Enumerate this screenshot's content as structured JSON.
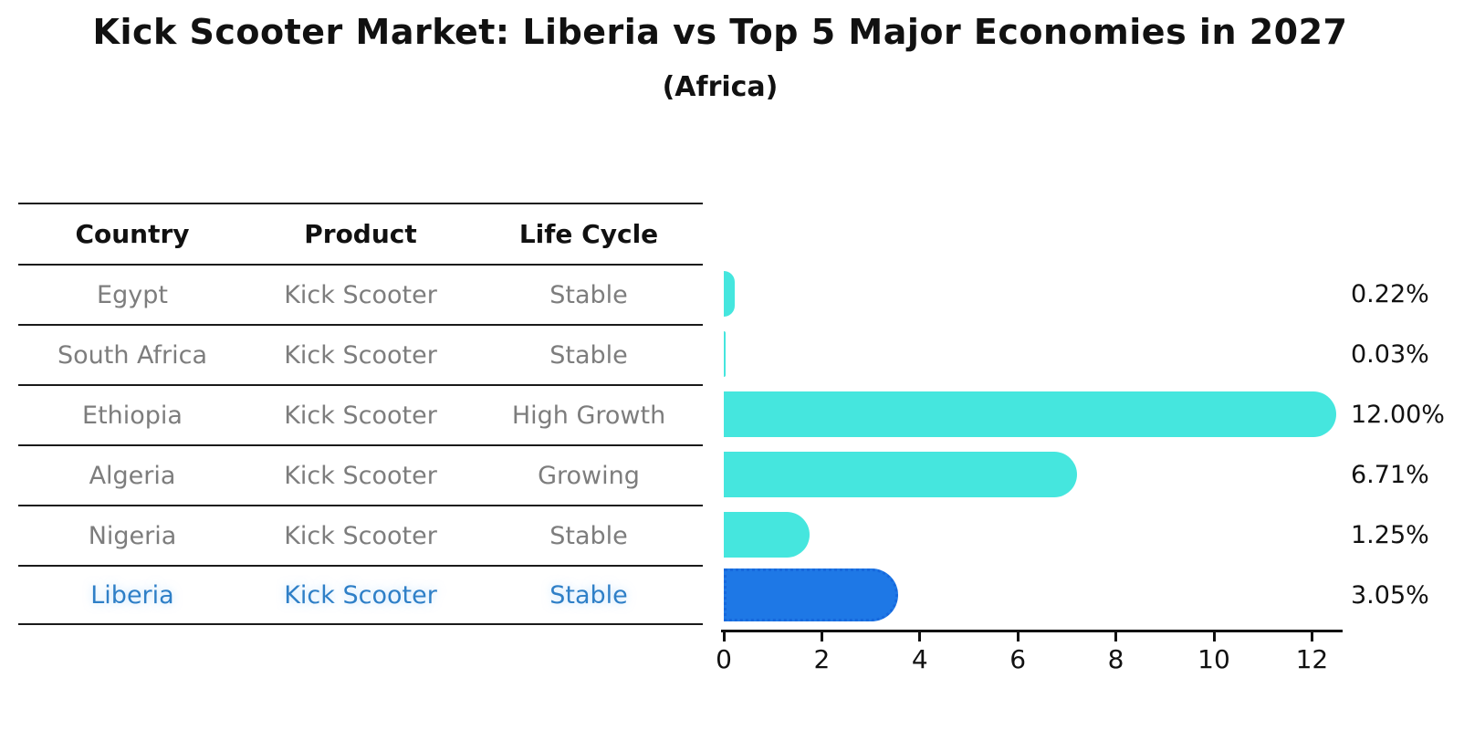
{
  "title": "Kick Scooter Market: Liberia vs Top 5 Major Economies in 2027",
  "subtitle": "(Africa)",
  "table": {
    "headers": [
      "Country",
      "Product",
      "Life Cycle"
    ],
    "rows": [
      {
        "country": "Egypt",
        "product": "Kick Scooter",
        "life_cycle": "Stable",
        "highlight": false
      },
      {
        "country": "South Africa",
        "product": "Kick Scooter",
        "life_cycle": "Stable",
        "highlight": false
      },
      {
        "country": "Ethiopia",
        "product": "Kick Scooter",
        "life_cycle": "High Growth",
        "highlight": false
      },
      {
        "country": "Algeria",
        "product": "Kick Scooter",
        "life_cycle": "Growing",
        "highlight": false
      },
      {
        "country": "Nigeria",
        "product": "Kick Scooter",
        "life_cycle": "Stable",
        "highlight": false
      },
      {
        "country": "Liberia",
        "product": "Kick Scooter",
        "life_cycle": "Stable",
        "highlight": true
      }
    ]
  },
  "chart_data": {
    "type": "bar",
    "orientation": "horizontal",
    "title": "Kick Scooter Market: Liberia vs Top 5 Major Economies in 2027",
    "subtitle": "(Africa)",
    "categories": [
      "Egypt",
      "South Africa",
      "Ethiopia",
      "Algeria",
      "Nigeria",
      "Liberia"
    ],
    "values": [
      0.22,
      0.03,
      12.0,
      6.71,
      1.25,
      3.05
    ],
    "value_labels": [
      "0.22%",
      "0.03%",
      "12.00%",
      "6.71%",
      "1.25%",
      "3.05%"
    ],
    "xticks": [
      "0",
      "2",
      "4",
      "6",
      "8",
      "10",
      "12"
    ],
    "xlim": [
      0,
      12.6
    ],
    "grid": false,
    "legend": null,
    "bar_color": "#45E6DE",
    "highlight_bar_color": "#1E78E6",
    "highlight_index": 5
  },
  "colors": {
    "background": "#FFFFFF",
    "text": "#111111",
    "muted_text": "#7D7D7D",
    "highlight_text": "#2E7FC7",
    "highlight_border": "#1668DD",
    "table_rule": "#1A1A1A"
  }
}
